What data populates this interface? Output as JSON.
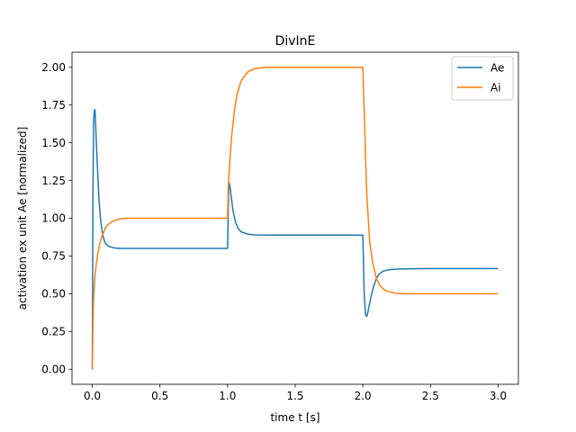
{
  "chart_data": {
    "type": "line",
    "title": "DivInE",
    "xlabel": "time t [s]",
    "ylabel": "activation ex unit Ae [normalized]",
    "xlim": [
      -0.15,
      3.15
    ],
    "ylim": [
      -0.1,
      2.1
    ],
    "xticks": [
      0.0,
      0.5,
      1.0,
      1.5,
      2.0,
      2.5,
      3.0
    ],
    "xtick_labels": [
      "0.0",
      "0.5",
      "1.0",
      "1.5",
      "2.0",
      "2.5",
      "3.0"
    ],
    "yticks": [
      0.0,
      0.25,
      0.5,
      0.75,
      1.0,
      1.25,
      1.5,
      1.75,
      2.0
    ],
    "ytick_labels": [
      "0.00",
      "0.25",
      "0.50",
      "0.75",
      "1.00",
      "1.25",
      "1.50",
      "1.75",
      "2.00"
    ],
    "grid": false,
    "legend_position": "upper right",
    "series": [
      {
        "name": "Ae",
        "color": "#1f77b4",
        "x": [
          0.0,
          0.002,
          0.005,
          0.01,
          0.015,
          0.02,
          0.025,
          0.03,
          0.04,
          0.05,
          0.06,
          0.07,
          0.08,
          0.09,
          0.1,
          0.12,
          0.14,
          0.16,
          0.18,
          0.2,
          0.25,
          0.3,
          0.4,
          0.6,
          0.8,
          1.0,
          1.0,
          1.005,
          1.01,
          1.02,
          1.03,
          1.04,
          1.06,
          1.08,
          1.1,
          1.15,
          1.2,
          1.3,
          1.5,
          1.8,
          2.0,
          2.0,
          2.005,
          2.01,
          2.02,
          2.03,
          2.04,
          2.06,
          2.08,
          2.1,
          2.12,
          2.15,
          2.2,
          2.3,
          2.5,
          3.0
        ],
        "y": [
          0.0,
          0.4,
          1.2,
          1.65,
          1.71,
          1.72,
          1.62,
          1.5,
          1.3,
          1.12,
          1.0,
          0.93,
          0.88,
          0.85,
          0.83,
          0.815,
          0.808,
          0.804,
          0.802,
          0.8,
          0.8,
          0.8,
          0.8,
          0.8,
          0.8,
          0.8,
          0.8,
          1.05,
          1.24,
          1.2,
          1.12,
          1.05,
          0.97,
          0.93,
          0.91,
          0.895,
          0.89,
          0.888,
          0.888,
          0.888,
          0.888,
          0.888,
          0.7,
          0.5,
          0.36,
          0.35,
          0.39,
          0.48,
          0.55,
          0.6,
          0.63,
          0.65,
          0.66,
          0.665,
          0.667,
          0.667
        ]
      },
      {
        "name": "Ai",
        "color": "#ff7f0e",
        "x": [
          0.0,
          0.002,
          0.005,
          0.01,
          0.02,
          0.03,
          0.04,
          0.05,
          0.06,
          0.08,
          0.1,
          0.12,
          0.15,
          0.2,
          0.25,
          0.3,
          0.4,
          0.6,
          0.8,
          1.0,
          1.0,
          1.005,
          1.01,
          1.02,
          1.03,
          1.05,
          1.07,
          1.1,
          1.13,
          1.16,
          1.2,
          1.25,
          1.3,
          1.4,
          1.6,
          1.8,
          2.0,
          2.0,
          2.005,
          2.01,
          2.02,
          2.03,
          2.05,
          2.07,
          2.1,
          2.13,
          2.16,
          2.2,
          2.25,
          2.3,
          2.4,
          2.6,
          3.0
        ],
        "y": [
          0.0,
          0.1,
          0.3,
          0.48,
          0.62,
          0.7,
          0.76,
          0.81,
          0.85,
          0.9,
          0.94,
          0.96,
          0.98,
          0.995,
          1.0,
          1.0,
          1.0,
          1.0,
          1.0,
          1.0,
          1.0,
          1.2,
          1.28,
          1.42,
          1.54,
          1.71,
          1.82,
          1.91,
          1.95,
          1.975,
          1.99,
          1.997,
          2.0,
          2.0,
          2.0,
          2.0,
          2.0,
          2.0,
          1.85,
          1.72,
          1.4,
          1.15,
          0.85,
          0.72,
          0.6,
          0.55,
          0.525,
          0.51,
          0.503,
          0.5,
          0.5,
          0.5,
          0.5
        ]
      }
    ]
  }
}
